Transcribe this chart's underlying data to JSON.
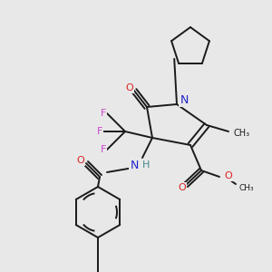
{
  "background_color": "#e8e8e8",
  "colors": {
    "bond": "#1a1a1a",
    "N": "#2222cc",
    "O": "#dd2222",
    "F": "#cc44cc",
    "H_label": "#448888",
    "background": "#e8e8e8"
  },
  "layout": {
    "figsize": [
      3.0,
      3.0
    ],
    "dpi": 100,
    "xlim": [
      0,
      300
    ],
    "ylim": [
      0,
      300
    ]
  }
}
